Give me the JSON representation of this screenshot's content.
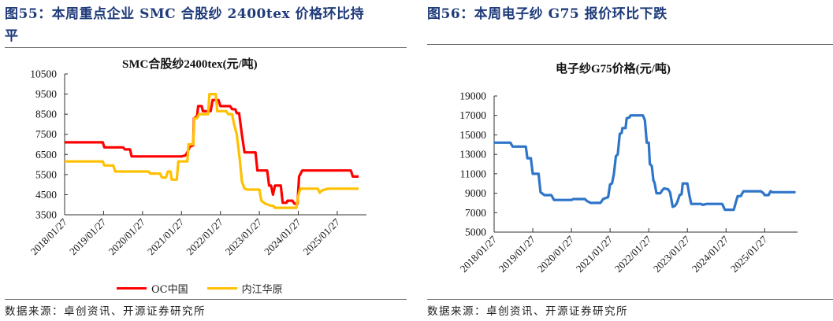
{
  "left_panel": {
    "figure_title_line1": "图55：本周重点企业 SMC 合股纱 2400tex 价格环比持",
    "figure_title_line2": "平",
    "source": "数据来源：卓创资讯、开源证券研究所"
  },
  "right_panel": {
    "figure_title_line1": "图56：本周电子纱 G75 报价环比下跌",
    "source": "数据来源：卓创资讯、开源证券研究所"
  },
  "chart_data": [
    {
      "type": "line",
      "title": "SMC合股纱2400tex(元/吨)",
      "xlabel": "",
      "ylabel": "",
      "ylim": [
        3500,
        10500
      ],
      "yticks": [
        10500,
        9500,
        8500,
        7500,
        6500,
        5500,
        4500,
        3500
      ],
      "xticks": [
        "2018/01/27",
        "2019/01/27",
        "2020/01/27",
        "2021/01/27",
        "2022/01/27",
        "2023/01/27",
        "2024/01/27",
        "2025/01/27"
      ],
      "xrange": [
        2018.0,
        2025.75
      ],
      "legend_position": "bottom",
      "series": [
        {
          "name": "OC中国",
          "color": "#ff0000",
          "points": [
            [
              2018.0,
              7100
            ],
            [
              2018.98,
              7100
            ],
            [
              2019.02,
              6850
            ],
            [
              2019.5,
              6850
            ],
            [
              2019.55,
              6750
            ],
            [
              2019.68,
              6750
            ],
            [
              2019.72,
              6400
            ],
            [
              2020.5,
              6400
            ],
            [
              2021.0,
              6400
            ],
            [
              2021.1,
              6450
            ],
            [
              2021.15,
              6600
            ],
            [
              2021.22,
              6900
            ],
            [
              2021.3,
              6950
            ],
            [
              2021.32,
              8300
            ],
            [
              2021.4,
              8400
            ],
            [
              2021.43,
              8900
            ],
            [
              2021.52,
              8900
            ],
            [
              2021.55,
              8650
            ],
            [
              2021.75,
              8650
            ],
            [
              2021.8,
              9200
            ],
            [
              2021.95,
              9200
            ],
            [
              2022.0,
              8900
            ],
            [
              2022.25,
              8900
            ],
            [
              2022.3,
              8750
            ],
            [
              2022.38,
              8750
            ],
            [
              2022.42,
              8550
            ],
            [
              2022.48,
              8550
            ],
            [
              2022.55,
              7500
            ],
            [
              2022.62,
              6600
            ],
            [
              2022.9,
              6600
            ],
            [
              2022.95,
              5700
            ],
            [
              2023.2,
              5700
            ],
            [
              2023.25,
              4950
            ],
            [
              2023.3,
              4950
            ],
            [
              2023.35,
              4500
            ],
            [
              2023.4,
              4950
            ],
            [
              2023.55,
              4950
            ],
            [
              2023.6,
              4100
            ],
            [
              2023.7,
              4100
            ],
            [
              2023.72,
              4200
            ],
            [
              2023.85,
              4200
            ],
            [
              2023.9,
              4050
            ],
            [
              2023.98,
              4050
            ],
            [
              2024.02,
              5400
            ],
            [
              2024.1,
              5700
            ],
            [
              2024.5,
              5700
            ],
            [
              2025.0,
              5700
            ],
            [
              2025.35,
              5700
            ],
            [
              2025.4,
              5400
            ],
            [
              2025.55,
              5400
            ]
          ]
        },
        {
          "name": "内江华原",
          "color": "#ffc000",
          "points": [
            [
              2018.0,
              6150
            ],
            [
              2018.98,
              6150
            ],
            [
              2019.02,
              5950
            ],
            [
              2019.25,
              5950
            ],
            [
              2019.3,
              5650
            ],
            [
              2020.0,
              5650
            ],
            [
              2020.15,
              5650
            ],
            [
              2020.2,
              5550
            ],
            [
              2020.45,
              5550
            ],
            [
              2020.5,
              5350
            ],
            [
              2020.6,
              5350
            ],
            [
              2020.65,
              5650
            ],
            [
              2020.72,
              5650
            ],
            [
              2020.75,
              5250
            ],
            [
              2020.88,
              5250
            ],
            [
              2020.92,
              6150
            ],
            [
              2021.1,
              6150
            ],
            [
              2021.15,
              6150
            ],
            [
              2021.18,
              7000
            ],
            [
              2021.3,
              7000
            ],
            [
              2021.33,
              8300
            ],
            [
              2021.4,
              8300
            ],
            [
              2021.45,
              8500
            ],
            [
              2021.68,
              8500
            ],
            [
              2021.72,
              9500
            ],
            [
              2021.88,
              9500
            ],
            [
              2021.92,
              8650
            ],
            [
              2022.15,
              8650
            ],
            [
              2022.2,
              8500
            ],
            [
              2022.3,
              8500
            ],
            [
              2022.35,
              8000
            ],
            [
              2022.42,
              7500
            ],
            [
              2022.5,
              6200
            ],
            [
              2022.55,
              5150
            ],
            [
              2022.62,
              4800
            ],
            [
              2022.7,
              4750
            ],
            [
              2023.0,
              4750
            ],
            [
              2023.05,
              4200
            ],
            [
              2023.15,
              4050
            ],
            [
              2023.3,
              3950
            ],
            [
              2023.35,
              3950
            ],
            [
              2023.4,
              3850
            ],
            [
              2023.95,
              3850
            ],
            [
              2024.0,
              4450
            ],
            [
              2024.05,
              4800
            ],
            [
              2024.5,
              4800
            ],
            [
              2024.55,
              4600
            ],
            [
              2024.6,
              4700
            ],
            [
              2024.75,
              4800
            ],
            [
              2025.0,
              4800
            ],
            [
              2025.55,
              4800
            ]
          ]
        }
      ]
    },
    {
      "type": "line",
      "title": "电子纱G75价格(元/吨)",
      "xlabel": "",
      "ylabel": "",
      "ylim": [
        5000,
        19000
      ],
      "yticks": [
        19000,
        17000,
        15000,
        13000,
        11000,
        9000,
        7000,
        5000
      ],
      "xticks": [
        "2018/01/27",
        "2019/01/27",
        "2020/01/27",
        "2021/01/27",
        "2022/01/27",
        "2023/01/27",
        "2024/01/27",
        "2025/01/27"
      ],
      "xrange": [
        2018.0,
        2025.85
      ],
      "legend_position": "none",
      "series": [
        {
          "name": "电子纱G75",
          "color": "#2e75c9",
          "points": [
            [
              2018.0,
              14200
            ],
            [
              2018.42,
              14200
            ],
            [
              2018.48,
              13800
            ],
            [
              2018.82,
              13800
            ],
            [
              2018.86,
              12600
            ],
            [
              2018.95,
              12600
            ],
            [
              2019.0,
              11000
            ],
            [
              2019.15,
              11000
            ],
            [
              2019.2,
              9100
            ],
            [
              2019.3,
              8800
            ],
            [
              2019.48,
              8800
            ],
            [
              2019.55,
              8300
            ],
            [
              2020.0,
              8300
            ],
            [
              2020.05,
              8400
            ],
            [
              2020.35,
              8400
            ],
            [
              2020.4,
              8200
            ],
            [
              2020.5,
              8000
            ],
            [
              2020.75,
              8000
            ],
            [
              2020.82,
              8400
            ],
            [
              2020.95,
              8600
            ],
            [
              2021.0,
              9900
            ],
            [
              2021.05,
              10000
            ],
            [
              2021.1,
              11000
            ],
            [
              2021.15,
              12800
            ],
            [
              2021.2,
              13000
            ],
            [
              2021.25,
              15100
            ],
            [
              2021.3,
              15200
            ],
            [
              2021.32,
              15700
            ],
            [
              2021.4,
              15700
            ],
            [
              2021.43,
              16700
            ],
            [
              2021.5,
              16800
            ],
            [
              2021.53,
              17000
            ],
            [
              2021.85,
              17000
            ],
            [
              2021.9,
              16500
            ],
            [
              2021.95,
              14200
            ],
            [
              2022.0,
              14200
            ],
            [
              2022.03,
              12000
            ],
            [
              2022.08,
              11800
            ],
            [
              2022.12,
              10300
            ],
            [
              2022.15,
              10100
            ],
            [
              2022.2,
              9000
            ],
            [
              2022.3,
              9000
            ],
            [
              2022.35,
              9300
            ],
            [
              2022.4,
              9500
            ],
            [
              2022.5,
              9400
            ],
            [
              2022.55,
              9100
            ],
            [
              2022.62,
              7600
            ],
            [
              2022.68,
              7700
            ],
            [
              2022.73,
              8000
            ],
            [
              2022.8,
              8800
            ],
            [
              2022.85,
              8900
            ],
            [
              2022.88,
              10000
            ],
            [
              2023.0,
              10000
            ],
            [
              2023.05,
              8800
            ],
            [
              2023.1,
              7900
            ],
            [
              2023.35,
              7900
            ],
            [
              2023.4,
              7800
            ],
            [
              2023.5,
              7900
            ],
            [
              2023.9,
              7900
            ],
            [
              2023.97,
              7300
            ],
            [
              2024.2,
              7300
            ],
            [
              2024.25,
              8000
            ],
            [
              2024.3,
              8700
            ],
            [
              2024.38,
              8700
            ],
            [
              2024.45,
              9200
            ],
            [
              2024.9,
              9200
            ],
            [
              2024.97,
              9000
            ],
            [
              2025.0,
              8800
            ],
            [
              2025.1,
              8800
            ],
            [
              2025.15,
              9200
            ],
            [
              2025.2,
              9100
            ],
            [
              2025.8,
              9100
            ]
          ]
        }
      ]
    }
  ],
  "legend": {
    "items": [
      "OC中国",
      "内江华原"
    ],
    "colors": [
      "#ff0000",
      "#ffc000"
    ]
  }
}
